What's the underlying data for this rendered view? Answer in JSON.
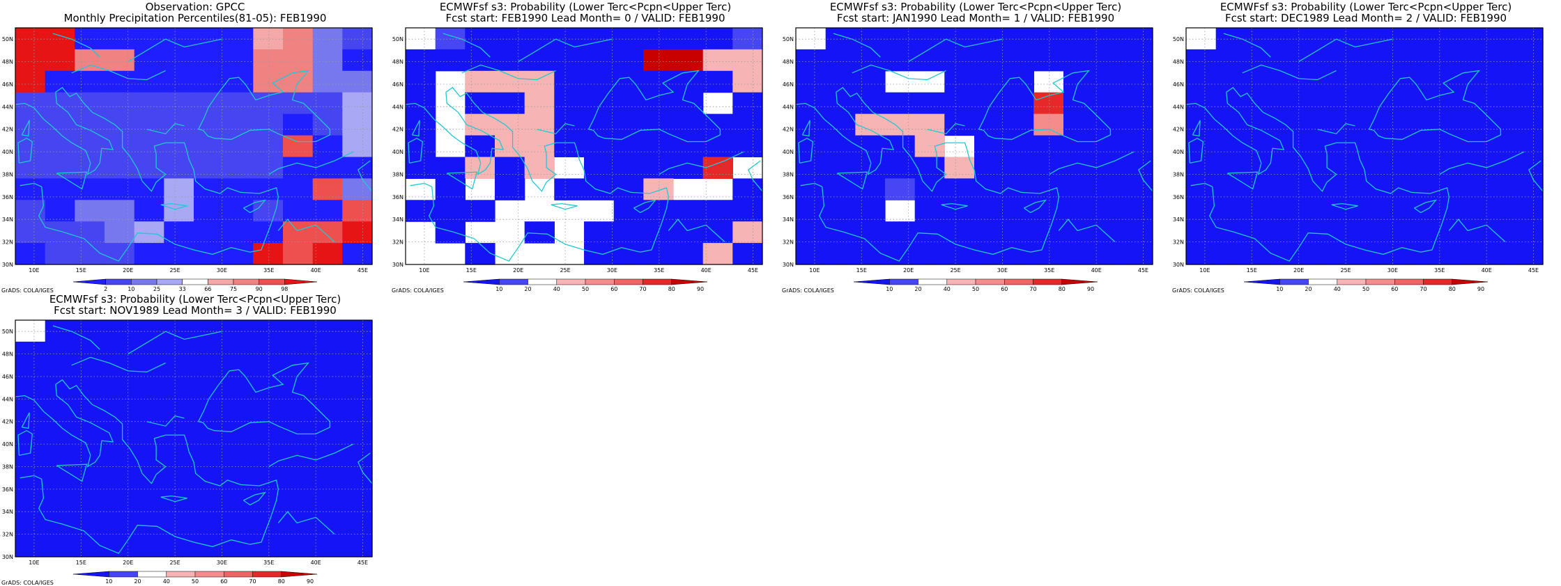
{
  "palettes": {
    "obs": [
      "#1e1eff",
      "#4646f0",
      "#7878ee",
      "#a8a8f4",
      "#ffffff",
      "#f4a8a8",
      "#f08282",
      "#ee5050",
      "#e61414"
    ],
    "prob": [
      "#1414f5",
      "#4646f5",
      "#ffffff",
      "#f7b4b4",
      "#f58c8c",
      "#f06464",
      "#e62828",
      "#c80000"
    ]
  },
  "axes": {
    "lon_labels": [
      "10E",
      "15E",
      "20E",
      "25E",
      "30E",
      "35E",
      "40E",
      "45E"
    ],
    "lat_labels": [
      "30N",
      "32N",
      "34N",
      "36N",
      "38N",
      "40N",
      "42N",
      "44N",
      "46N",
      "48N",
      "50N"
    ]
  },
  "colorbars": {
    "obs": [
      "2",
      "10",
      "25",
      "33",
      "66",
      "75",
      "90",
      "98"
    ],
    "prob": [
      "10",
      "20",
      "40",
      "50",
      "60",
      "70",
      "80",
      "90"
    ]
  },
  "panels": [
    {
      "title1": "Observation: GPCC",
      "title2": "Monthly Precipitation Percentiles(81-05): FEB1990",
      "grads": "GrADS: COLA/IGES",
      "palette": "obs",
      "bar": "obs",
      "grid": [
        "880000005621",
        "886600006620",
        "800000006622",
        "111111111113",
        "111111111013",
        "111111111703",
        "111111111000",
        "000003000072",
        "102203001007",
        "111230000778",
        "011100008780"
      ]
    },
    {
      "title1": "ECMWFsf s3: Probability (Lower Terc<Pcpn<Upper Terc)",
      "title2": "Fcst start: FEB1990   Lead Month= 0 / VALID: FEB1990",
      "grads": "GrADS: COLA/IGES",
      "palette": "prob",
      "bar": "prob",
      "grid": [
        "210000000001",
        "000000007733",
        "023330000003",
        "020030000020",
        "023330000000",
        "020330000000",
        "003032000062",
        "202020003220",
        "000222200000",
        "202202000003",
        "220222000030"
      ]
    },
    {
      "title1": "ECMWFsf s3: Probability (Lower Terc<Pcpn<Upper Terc)",
      "title2": "Fcst start: JAN1990   Lead Month= 1 / VALID: FEB1990",
      "grads": "GrADS: COLA/IGES",
      "palette": "prob",
      "bar": "prob",
      "grid": [
        "200000000000",
        "000000000000",
        "000220002000",
        "000000006000",
        "003330004000",
        "000032000000",
        "000003000000",
        "000100000000",
        "000200000000",
        "000000000000",
        "000000000000"
      ]
    },
    {
      "title1": "ECMWFsf s3: Probability (Lower Terc<Pcpn<Upper Terc)",
      "title2": "Fcst start: DEC1989   Lead Month= 2 / VALID: FEB1990",
      "grads": "GrADS: COLA/IGES",
      "palette": "prob",
      "bar": "prob",
      "grid": [
        "200000000000",
        "000000000000",
        "000000000000",
        "000000000000",
        "000000000000",
        "000000000000",
        "000000000000",
        "000000000000",
        "000000000000",
        "000000000000",
        "000000000000"
      ]
    },
    {
      "title1": "ECMWFsf s3: Probability (Lower Terc<Pcpn<Upper Terc)",
      "title2": "Fcst start: NOV1989   Lead Month= 3 / VALID: FEB1990",
      "grads": "GrADS: COLA/IGES",
      "palette": "prob",
      "bar": "prob",
      "grid": [
        "200000000000",
        "000000000000",
        "000000000000",
        "000000000000",
        "000000000000",
        "000000000000",
        "000000000000",
        "000000000000",
        "000000000000",
        "000000000000",
        "000000000000"
      ]
    }
  ]
}
